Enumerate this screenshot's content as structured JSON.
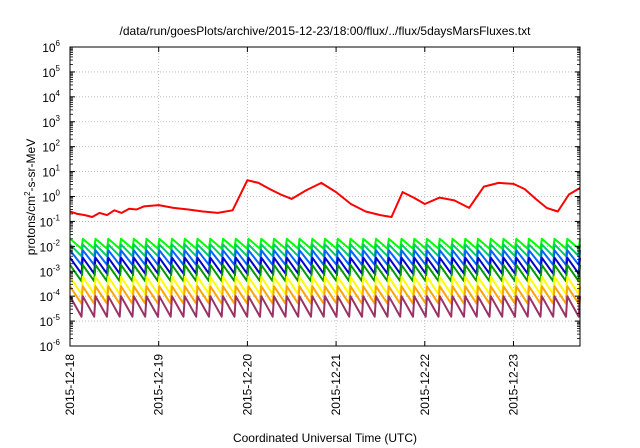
{
  "chart_data": {
    "type": "line",
    "title": "/data/run/goesPlots/archive/2015-12-23/18:00/flux/../flux/5daysMarsFluxes.txt",
    "xlabel": "Coordinated Universal Time (UTC)",
    "ylabel": {
      "base": "protons/cm",
      "sup": "2",
      "rest": "-s-sr-MeV"
    },
    "y_scale": "log",
    "ylim": [
      1e-06,
      1000000.0
    ],
    "y_ticks": [
      {
        "exp": "-6"
      },
      {
        "exp": "-5"
      },
      {
        "exp": "-4"
      },
      {
        "exp": "-3"
      },
      {
        "exp": "-2"
      },
      {
        "exp": "-1"
      },
      {
        "exp": "0"
      },
      {
        "exp": "1"
      },
      {
        "exp": "2"
      },
      {
        "exp": "3"
      },
      {
        "exp": "4"
      },
      {
        "exp": "5"
      },
      {
        "exp": "6"
      }
    ],
    "x_range": [
      "2015-12-18",
      "2015-12-23T18:00"
    ],
    "x_ticks": [
      "2015-12-18",
      "2015-12-19",
      "2015-12-20",
      "2015-12-21",
      "2015-12-22",
      "2015-12-23"
    ],
    "grid": true,
    "series": [
      {
        "color": "#ff0000",
        "x": [
          "2015-12-18T00:00",
          "2015-12-18T02:00",
          "2015-12-18T04:00",
          "2015-12-18T06:00",
          "2015-12-18T08:00",
          "2015-12-18T10:00",
          "2015-12-18T12:00",
          "2015-12-18T14:00",
          "2015-12-18T16:00",
          "2015-12-18T18:00",
          "2015-12-18T20:00",
          "2015-12-19T00:00",
          "2015-12-19T04:00",
          "2015-12-19T08:00",
          "2015-12-19T12:00",
          "2015-12-19T16:00",
          "2015-12-19T20:00",
          "2015-12-20T00:00",
          "2015-12-20T03:00",
          "2015-12-20T06:00",
          "2015-12-20T09:00",
          "2015-12-20T12:00",
          "2015-12-20T16:00",
          "2015-12-20T20:00",
          "2015-12-21T00:00",
          "2015-12-21T04:00",
          "2015-12-21T08:00",
          "2015-12-21T12:00",
          "2015-12-21T15:00",
          "2015-12-21T18:00",
          "2015-12-21T21:00",
          "2015-12-22T00:00",
          "2015-12-22T04:00",
          "2015-12-22T08:00",
          "2015-12-22T12:00",
          "2015-12-22T16:00",
          "2015-12-22T20:00",
          "2015-12-23T00:00",
          "2015-12-23T03:00",
          "2015-12-23T06:00",
          "2015-12-23T09:00",
          "2015-12-23T12:00",
          "2015-12-23T15:00",
          "2015-12-23T18:00"
        ],
        "y": [
          0.25,
          0.2,
          0.18,
          0.15,
          0.22,
          0.18,
          0.28,
          0.22,
          0.32,
          0.3,
          0.4,
          0.45,
          0.35,
          0.3,
          0.25,
          0.22,
          0.28,
          4.5,
          3.5,
          2,
          1.2,
          0.8,
          1.8,
          3.5,
          1.5,
          0.5,
          0.25,
          0.18,
          0.15,
          1.5,
          0.9,
          0.5,
          0.9,
          0.7,
          0.35,
          2.5,
          3.5,
          3.2,
          2,
          0.8,
          0.35,
          0.25,
          1.2,
          2.2
        ]
      },
      {
        "color": "#00ff00",
        "x_start": "2015-12-18T00:00",
        "x_end": "2015-12-23T18:00",
        "cycles": 40,
        "peak": 0.02,
        "trough": 0.008
      },
      {
        "color": "#00cc66",
        "x_start": "2015-12-18T00:00",
        "x_end": "2015-12-23T18:00",
        "cycles": 40,
        "peak": 0.012,
        "trough": 0.004
      },
      {
        "color": "#0066ff",
        "x_start": "2015-12-18T00:00",
        "x_end": "2015-12-23T18:00",
        "cycles": 40,
        "peak": 0.007,
        "trough": 0.0018
      },
      {
        "color": "#0000cc",
        "x_start": "2015-12-18T00:00",
        "x_end": "2015-12-23T18:00",
        "cycles": 40,
        "peak": 0.0035,
        "trough": 0.0008
      },
      {
        "color": "#009900",
        "x_start": "2015-12-18T00:00",
        "x_end": "2015-12-23T18:00",
        "cycles": 40,
        "peak": 0.0018,
        "trough": 0.0004
      },
      {
        "color": "#ffff00",
        "x_start": "2015-12-18T00:00",
        "x_end": "2015-12-23T18:00",
        "cycles": 40,
        "peak": 0.0006,
        "trough": 0.00012
      },
      {
        "color": "#ffa500",
        "x_start": "2015-12-18T00:00",
        "x_end": "2015-12-23T18:00",
        "cycles": 40,
        "peak": 0.00025,
        "trough": 5e-05
      },
      {
        "color": "#993366",
        "x_start": "2015-12-18T00:00",
        "x_end": "2015-12-23T18:00",
        "cycles": 40,
        "peak": 0.0001,
        "trough": 1.5e-05
      }
    ]
  }
}
